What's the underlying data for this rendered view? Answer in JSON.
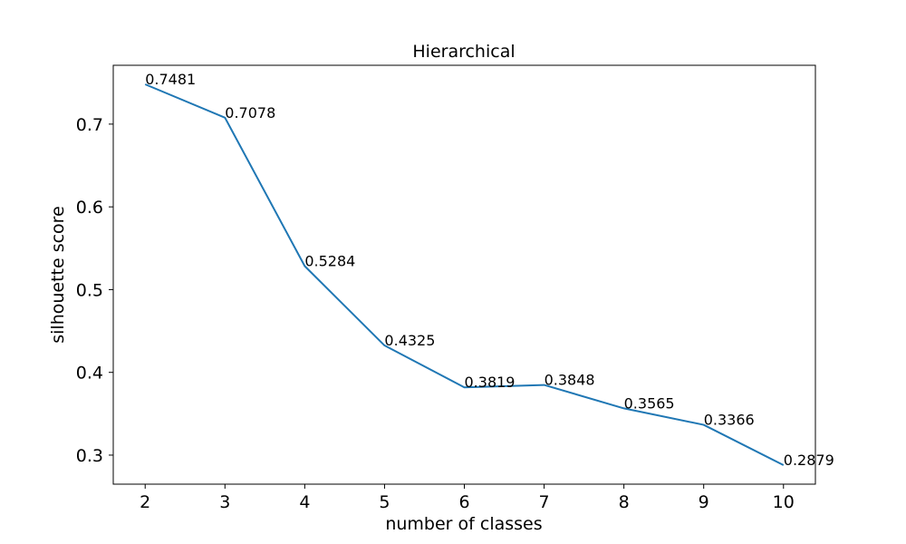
{
  "chart_data": {
    "type": "line",
    "title": "Hierarchical",
    "xlabel": "number of classes",
    "ylabel": "silhouette score",
    "x": [
      2,
      3,
      4,
      5,
      6,
      7,
      8,
      9,
      10
    ],
    "series": [
      {
        "values": [
          0.7481,
          0.7078,
          0.5284,
          0.4325,
          0.3819,
          0.3848,
          0.3565,
          0.3366,
          0.2879
        ],
        "labels": [
          "0.7481",
          "0.7078",
          "0.5284",
          "0.4325",
          "0.3819",
          "0.3848",
          "0.3565",
          "0.3366",
          "0.2879"
        ],
        "color": "#1f77b4"
      }
    ],
    "xticks": [
      "2",
      "3",
      "4",
      "5",
      "6",
      "7",
      "8",
      "9",
      "10"
    ],
    "yticks": [
      "0.3",
      "0.4",
      "0.5",
      "0.6",
      "0.7"
    ],
    "xlim": [
      1.6,
      10.4
    ],
    "ylim": [
      0.2649,
      0.7711
    ],
    "grid": false,
    "legend": false
  }
}
